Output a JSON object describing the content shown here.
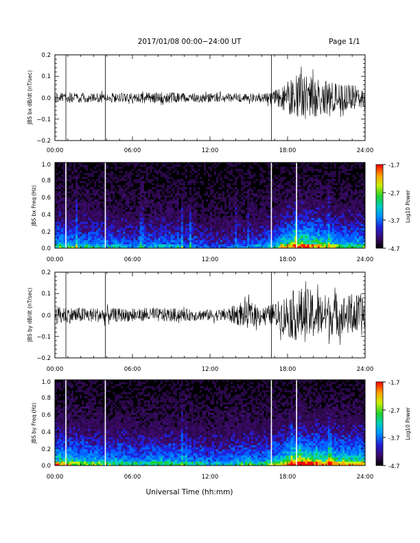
{
  "header": {
    "title": "2017/01/08  00:00−24:00 UT",
    "page": "Page 1/1"
  },
  "xlabel": "Universal Time (hh:mm)",
  "colors": {
    "background": "#ffffff",
    "trace": "#000000",
    "gap_line": "#ffffff"
  },
  "gap_times_hours": [
    0.85,
    3.9,
    16.75,
    18.7
  ],
  "colorbar": {
    "label": "Log10 Power",
    "ticks": [
      "-1.7",
      "-2.7",
      "-3.7",
      "-4.7"
    ],
    "range": [
      -4.7,
      -1.7
    ]
  },
  "chart_data": [
    {
      "type": "line",
      "name": "bx-waveform",
      "ylabel": "JBS bx dB/dt (nT/sec)",
      "xlim": [
        0,
        24
      ],
      "ylim": [
        -0.2,
        0.2
      ],
      "xticks": [
        "00:00",
        "06:00",
        "12:00",
        "18:00",
        "24:00"
      ],
      "yticks": [
        "0.2",
        "0.1",
        "0.0",
        "−0.1",
        "−0.2"
      ],
      "envelope": {
        "x_hours": [
          0,
          1,
          2,
          3,
          4,
          5,
          6,
          7,
          8,
          9,
          10,
          11,
          12,
          13,
          14,
          15,
          16,
          17,
          18,
          19,
          20,
          21,
          22,
          23,
          24
        ],
        "amplitude": [
          0.03,
          0.035,
          0.035,
          0.035,
          0.035,
          0.035,
          0.035,
          0.035,
          0.04,
          0.04,
          0.035,
          0.035,
          0.035,
          0.03,
          0.03,
          0.03,
          0.035,
          0.05,
          0.12,
          0.18,
          0.15,
          0.12,
          0.1,
          0.09,
          0.09
        ]
      }
    },
    {
      "type": "heatmap",
      "name": "bx-spectrogram",
      "ylabel": "JBS bx Freq (Hz)",
      "xlim": [
        0,
        24
      ],
      "ylim": [
        0,
        1
      ],
      "xticks": [
        "00:00",
        "06:00",
        "12:00",
        "18:00",
        "24:00"
      ],
      "yticks": [
        "1.0",
        "0.8",
        "0.6",
        "0.4",
        "0.2",
        "0.0"
      ],
      "activity": {
        "x_hours": [
          0,
          1,
          2,
          3,
          4,
          5,
          6,
          7,
          8,
          9,
          10,
          11,
          12,
          13,
          14,
          15,
          16,
          17,
          18,
          19,
          20,
          21,
          22,
          23,
          24
        ],
        "level": [
          0.55,
          0.55,
          0.5,
          0.5,
          0.45,
          0.45,
          0.4,
          0.4,
          0.45,
          0.45,
          0.4,
          0.35,
          0.3,
          0.3,
          0.35,
          0.35,
          0.4,
          0.5,
          0.7,
          0.8,
          0.75,
          0.65,
          0.6,
          0.55,
          0.55
        ]
      }
    },
    {
      "type": "line",
      "name": "by-waveform",
      "ylabel": "JBS by dB/dt (nT/sec)",
      "xlim": [
        0,
        24
      ],
      "ylim": [
        -0.2,
        0.2
      ],
      "xticks": [
        "00:00",
        "06:00",
        "12:00",
        "18:00",
        "24:00"
      ],
      "yticks": [
        "0.2",
        "0.1",
        "0.0",
        "−0.1",
        "−0.2"
      ],
      "envelope": {
        "x_hours": [
          0,
          1,
          2,
          3,
          4,
          5,
          6,
          7,
          8,
          9,
          10,
          11,
          12,
          13,
          14,
          15,
          16,
          17,
          18,
          19,
          20,
          21,
          22,
          23,
          24
        ],
        "amplitude": [
          0.06,
          0.06,
          0.055,
          0.055,
          0.05,
          0.05,
          0.045,
          0.045,
          0.05,
          0.05,
          0.045,
          0.04,
          0.04,
          0.045,
          0.07,
          0.1,
          0.06,
          0.08,
          0.16,
          0.2,
          0.18,
          0.15,
          0.14,
          0.15,
          0.15
        ]
      }
    },
    {
      "type": "heatmap",
      "name": "by-spectrogram",
      "ylabel": "JBS by Freq (Hz)",
      "xlim": [
        0,
        24
      ],
      "ylim": [
        0,
        1
      ],
      "xticks": [
        "00:00",
        "06:00",
        "12:00",
        "18:00",
        "24:00"
      ],
      "yticks": [
        "1.0",
        "0.8",
        "0.6",
        "0.4",
        "0.2",
        "0.0"
      ],
      "activity": {
        "x_hours": [
          0,
          1,
          2,
          3,
          4,
          5,
          6,
          7,
          8,
          9,
          10,
          11,
          12,
          13,
          14,
          15,
          16,
          17,
          18,
          19,
          20,
          21,
          22,
          23,
          24
        ],
        "level": [
          0.7,
          0.65,
          0.6,
          0.6,
          0.55,
          0.55,
          0.5,
          0.5,
          0.55,
          0.55,
          0.5,
          0.5,
          0.45,
          0.45,
          0.5,
          0.55,
          0.5,
          0.6,
          0.75,
          0.85,
          0.8,
          0.75,
          0.7,
          0.7,
          0.7
        ]
      }
    }
  ]
}
